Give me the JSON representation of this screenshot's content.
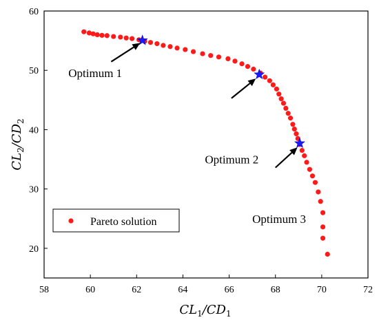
{
  "chart_data": {
    "type": "scatter",
    "title": "",
    "xlabel": {
      "base1": "CL",
      "sub1": "1",
      "sep": "/CD",
      "sub2": "1"
    },
    "ylabel": {
      "base1": "CL",
      "sub1": "2",
      "sep": "/CD",
      "sub2": "2"
    },
    "xlim": [
      58,
      72
    ],
    "ylim": [
      15,
      60
    ],
    "xticks": [
      58,
      60,
      62,
      64,
      66,
      68,
      70,
      72
    ],
    "yticks": [
      20,
      30,
      40,
      50,
      60
    ],
    "grid": false,
    "legend_position": "bottom-left",
    "series": [
      {
        "name": "Pareto solution",
        "color": "#ff1a1a",
        "marker": "circle",
        "points": [
          [
            59.72,
            56.5
          ],
          [
            59.95,
            56.3
          ],
          [
            60.12,
            56.15
          ],
          [
            60.3,
            56.0
          ],
          [
            60.5,
            55.9
          ],
          [
            60.72,
            55.85
          ],
          [
            61.0,
            55.7
          ],
          [
            61.3,
            55.6
          ],
          [
            61.55,
            55.45
          ],
          [
            61.8,
            55.35
          ],
          [
            62.1,
            55.15
          ],
          [
            62.35,
            54.9
          ],
          [
            62.6,
            54.7
          ],
          [
            62.88,
            54.5
          ],
          [
            63.15,
            54.2
          ],
          [
            63.45,
            54.0
          ],
          [
            63.75,
            53.75
          ],
          [
            64.1,
            53.5
          ],
          [
            64.45,
            53.15
          ],
          [
            64.85,
            52.8
          ],
          [
            65.2,
            52.5
          ],
          [
            65.55,
            52.25
          ],
          [
            65.95,
            51.95
          ],
          [
            66.25,
            51.55
          ],
          [
            66.55,
            51.1
          ],
          [
            66.8,
            50.65
          ],
          [
            67.05,
            50.2
          ],
          [
            67.35,
            49.55
          ],
          [
            67.55,
            48.85
          ],
          [
            67.75,
            48.25
          ],
          [
            67.9,
            47.55
          ],
          [
            68.05,
            46.85
          ],
          [
            68.15,
            46.0
          ],
          [
            68.25,
            45.2
          ],
          [
            68.35,
            44.45
          ],
          [
            68.45,
            43.6
          ],
          [
            68.55,
            42.75
          ],
          [
            68.65,
            41.95
          ],
          [
            68.75,
            40.9
          ],
          [
            68.82,
            40.1
          ],
          [
            68.9,
            39.3
          ],
          [
            68.97,
            38.5
          ],
          [
            69.05,
            37.5
          ],
          [
            69.15,
            36.5
          ],
          [
            69.25,
            35.6
          ],
          [
            69.35,
            34.5
          ],
          [
            69.48,
            33.3
          ],
          [
            69.6,
            32.2
          ],
          [
            69.72,
            31.1
          ],
          [
            69.85,
            29.5
          ],
          [
            69.95,
            27.9
          ],
          [
            70.05,
            26.0
          ],
          [
            70.05,
            23.6
          ],
          [
            70.05,
            21.7
          ],
          [
            70.25,
            19.0
          ]
        ]
      },
      {
        "name": "",
        "color": "#1a1aff",
        "marker": "star",
        "points": [
          [
            62.25,
            55.05
          ],
          [
            67.3,
            49.3
          ],
          [
            69.05,
            37.7
          ]
        ]
      }
    ],
    "annotations": [
      {
        "text": "Optimum 1",
        "x": 59.05,
        "y": 48.85,
        "arrow_from": [
          60.9,
          51.45
        ],
        "arrow_to": [
          62.15,
          54.6
        ]
      },
      {
        "text": "Optimum 2",
        "x": 64.95,
        "y": 34.3,
        "arrow_from": [
          66.1,
          45.3
        ],
        "arrow_to": [
          67.15,
          48.6
        ]
      },
      {
        "text": "Optimum 3",
        "x": 67.0,
        "y": 24.3,
        "arrow_from": [
          68.0,
          33.6
        ],
        "arrow_to": [
          68.95,
          37.0
        ]
      }
    ],
    "legend": [
      {
        "label": "Pareto solution",
        "color": "#ff1a1a",
        "marker": "circle"
      }
    ]
  }
}
